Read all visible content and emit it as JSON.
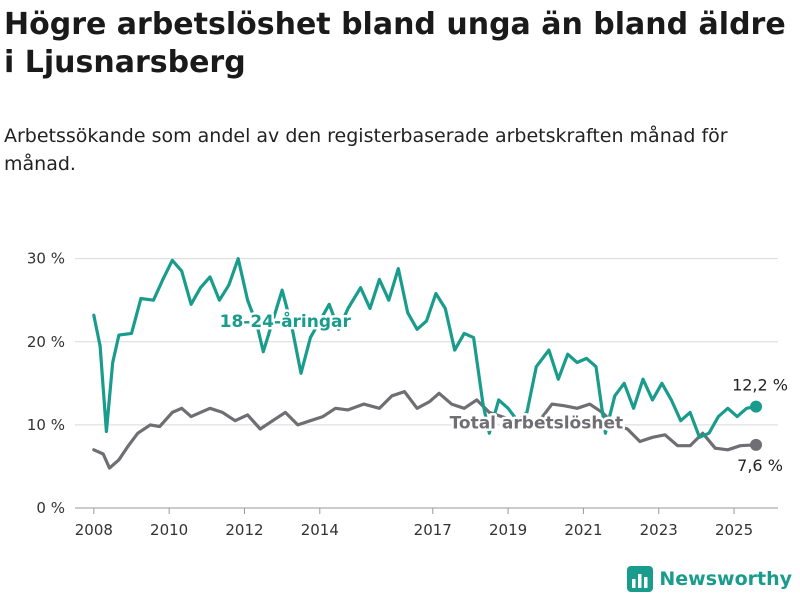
{
  "title": "Högre arbetslöshet bland unga än bland äldre i Ljusnarsberg",
  "subtitle": "Arbetssökande som andel av den registerbaserade arbetskraften månad för månad.",
  "brand": {
    "name": "Newsworthy",
    "icon": "bar-chart-logo-icon"
  },
  "colors": {
    "youth": "#1a9c8c",
    "total": "#6e6e73",
    "grid": "#d9d9d9"
  },
  "chart_data": {
    "type": "line",
    "y_ticks": [
      "0 %",
      "10 %",
      "20 %",
      "30 %"
    ],
    "x_ticks": [
      "2008",
      "2010",
      "2012",
      "2014",
      "2017",
      "2019",
      "2021",
      "2023",
      "2025"
    ],
    "ylim": [
      0,
      32
    ],
    "xlim": [
      "2007-07",
      "2026-03"
    ],
    "grid": true,
    "series": [
      {
        "name": "18-24-åringar",
        "label_at": [
          "2013-02",
          22.5
        ],
        "end_label": "12,2 %",
        "points": [
          [
            "2008-01",
            23.2
          ],
          [
            "2008-03",
            19.5
          ],
          [
            "2008-05",
            9.2
          ],
          [
            "2008-07",
            17.5
          ],
          [
            "2008-09",
            20.8
          ],
          [
            "2009-01",
            21.0
          ],
          [
            "2009-04",
            25.2
          ],
          [
            "2009-08",
            25.0
          ],
          [
            "2009-11",
            27.5
          ],
          [
            "2010-02",
            29.8
          ],
          [
            "2010-05",
            28.5
          ],
          [
            "2010-08",
            24.5
          ],
          [
            "2010-11",
            26.5
          ],
          [
            "2011-02",
            27.8
          ],
          [
            "2011-05",
            25.0
          ],
          [
            "2011-08",
            26.8
          ],
          [
            "2011-11",
            30.0
          ],
          [
            "2012-02",
            25.0
          ],
          [
            "2012-05",
            22.0
          ],
          [
            "2012-07",
            18.8
          ],
          [
            "2012-10",
            22.5
          ],
          [
            "2013-01",
            26.2
          ],
          [
            "2013-04",
            22.0
          ],
          [
            "2013-07",
            16.2
          ],
          [
            "2013-10",
            20.5
          ],
          [
            "2014-01",
            22.5
          ],
          [
            "2014-04",
            24.5
          ],
          [
            "2014-07",
            21.5
          ],
          [
            "2014-10",
            24.0
          ],
          [
            "2015-02",
            26.5
          ],
          [
            "2015-05",
            24.0
          ],
          [
            "2015-08",
            27.5
          ],
          [
            "2015-11",
            25.0
          ],
          [
            "2016-02",
            28.8
          ],
          [
            "2016-05",
            23.5
          ],
          [
            "2016-08",
            21.5
          ],
          [
            "2016-11",
            22.5
          ],
          [
            "2017-02",
            25.8
          ],
          [
            "2017-05",
            24.0
          ],
          [
            "2017-08",
            19.0
          ],
          [
            "2017-11",
            21.0
          ],
          [
            "2018-02",
            20.5
          ],
          [
            "2018-05",
            12.5
          ],
          [
            "2018-07",
            9.0
          ],
          [
            "2018-10",
            13.0
          ],
          [
            "2019-01",
            12.0
          ],
          [
            "2019-04",
            10.5
          ],
          [
            "2019-07",
            11.5
          ],
          [
            "2019-10",
            17.0
          ],
          [
            "2020-02",
            19.0
          ],
          [
            "2020-05",
            15.5
          ],
          [
            "2020-08",
            18.5
          ],
          [
            "2020-11",
            17.5
          ],
          [
            "2021-02",
            18.0
          ],
          [
            "2021-05",
            17.0
          ],
          [
            "2021-08",
            9.0
          ],
          [
            "2021-11",
            13.5
          ],
          [
            "2022-02",
            15.0
          ],
          [
            "2022-05",
            12.0
          ],
          [
            "2022-08",
            15.5
          ],
          [
            "2022-11",
            13.0
          ],
          [
            "2023-02",
            15.0
          ],
          [
            "2023-05",
            13.0
          ],
          [
            "2023-08",
            10.5
          ],
          [
            "2023-11",
            11.5
          ],
          [
            "2024-02",
            8.5
          ],
          [
            "2024-05",
            9.0
          ],
          [
            "2024-08",
            11.0
          ],
          [
            "2024-11",
            12.0
          ],
          [
            "2025-02",
            11.0
          ],
          [
            "2025-05",
            12.0
          ],
          [
            "2025-08",
            12.2
          ]
        ]
      },
      {
        "name": "Total arbetslöshet",
        "label_at": [
          "2019-10",
          10.3
        ],
        "end_label": "7,6 %",
        "points": [
          [
            "2008-01",
            7.0
          ],
          [
            "2008-04",
            6.5
          ],
          [
            "2008-06",
            4.8
          ],
          [
            "2008-09",
            5.8
          ],
          [
            "2008-12",
            7.5
          ],
          [
            "2009-03",
            9.0
          ],
          [
            "2009-07",
            10.0
          ],
          [
            "2009-10",
            9.8
          ],
          [
            "2010-02",
            11.5
          ],
          [
            "2010-05",
            12.0
          ],
          [
            "2010-08",
            11.0
          ],
          [
            "2010-11",
            11.5
          ],
          [
            "2011-02",
            12.0
          ],
          [
            "2011-06",
            11.5
          ],
          [
            "2011-10",
            10.5
          ],
          [
            "2012-02",
            11.2
          ],
          [
            "2012-06",
            9.5
          ],
          [
            "2012-10",
            10.5
          ],
          [
            "2013-02",
            11.5
          ],
          [
            "2013-06",
            10.0
          ],
          [
            "2013-10",
            10.5
          ],
          [
            "2014-02",
            11.0
          ],
          [
            "2014-06",
            12.0
          ],
          [
            "2014-10",
            11.8
          ],
          [
            "2015-03",
            12.5
          ],
          [
            "2015-08",
            12.0
          ],
          [
            "2015-12",
            13.5
          ],
          [
            "2016-04",
            14.0
          ],
          [
            "2016-08",
            12.0
          ],
          [
            "2016-12",
            12.8
          ],
          [
            "2017-03",
            13.8
          ],
          [
            "2017-07",
            12.5
          ],
          [
            "2017-11",
            12.0
          ],
          [
            "2018-03",
            13.0
          ],
          [
            "2018-07",
            11.5
          ],
          [
            "2018-11",
            11.0
          ],
          [
            "2019-03",
            10.5
          ],
          [
            "2019-07",
            10.0
          ],
          [
            "2019-11",
            10.5
          ],
          [
            "2020-03",
            12.5
          ],
          [
            "2020-07",
            12.3
          ],
          [
            "2020-11",
            12.0
          ],
          [
            "2021-03",
            12.5
          ],
          [
            "2021-07",
            11.5
          ],
          [
            "2021-11",
            10.0
          ],
          [
            "2022-03",
            9.5
          ],
          [
            "2022-07",
            8.0
          ],
          [
            "2022-11",
            8.5
          ],
          [
            "2023-03",
            8.8
          ],
          [
            "2023-07",
            7.5
          ],
          [
            "2023-11",
            7.5
          ],
          [
            "2024-03",
            9.0
          ],
          [
            "2024-07",
            7.2
          ],
          [
            "2024-11",
            7.0
          ],
          [
            "2025-03",
            7.5
          ],
          [
            "2025-08",
            7.6
          ]
        ]
      }
    ]
  }
}
